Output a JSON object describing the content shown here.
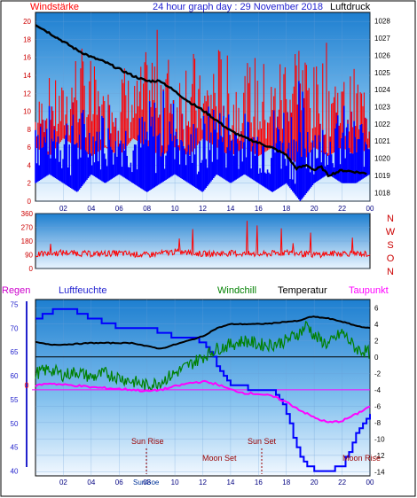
{
  "header": {
    "left": "Windstärke",
    "center": "24 hour graph day : 29 November 2018",
    "right": "Luftdruck"
  },
  "legend": {
    "regen": "Regen",
    "luftfeuchte": "Luftfeuchte",
    "windchill": "Windchill",
    "temperatur": "Temperatur",
    "taupunkt": "Taupunkt"
  },
  "compass": [
    "N",
    "W",
    "S",
    "O",
    "N"
  ],
  "annotations": {
    "sun_rise": "Sun Rise",
    "sun_set": "Sun Set",
    "moon_set": "Moon Set",
    "moon_rise": "Moon Rise",
    "sungoe": "SunGoe"
  },
  "colors": {
    "wind": "#ff0000",
    "gust": "#0000ff",
    "pressure": "#000000",
    "humidity": "#0000ff",
    "windchill": "#008000",
    "temperature": "#000000",
    "dewpoint": "#ff00ff",
    "rain": "#ff0000"
  },
  "chart_data": [
    {
      "type": "bar",
      "name": "wind-pressure",
      "x_ticks": [
        "02",
        "04",
        "06",
        "08",
        "10",
        "12",
        "14",
        "16",
        "18",
        "20",
        "22",
        "00"
      ],
      "y_left_ticks": [
        "0",
        "2",
        "4",
        "6",
        "8",
        "10",
        "12",
        "14",
        "16",
        "18",
        "20"
      ],
      "y_right_ticks": [
        "1018",
        "1019",
        "1020",
        "1021",
        "1022",
        "1023",
        "1024",
        "1025",
        "1026",
        "1027",
        "1028"
      ],
      "ylim_left": [
        0,
        21
      ],
      "ylim_right": [
        1017.5,
        1028.5
      ],
      "xlim": [
        0,
        24
      ],
      "pressure": [
        [
          0,
          1027.8
        ],
        [
          1,
          1027.3
        ],
        [
          2,
          1026.8
        ],
        [
          3,
          1026.3
        ],
        [
          4,
          1025.9
        ],
        [
          5,
          1025.6
        ],
        [
          6,
          1025.2
        ],
        [
          7,
          1024.8
        ],
        [
          8,
          1024.5
        ],
        [
          9,
          1024.5
        ],
        [
          10,
          1023.9
        ],
        [
          11,
          1023.3
        ],
        [
          12,
          1022.8
        ],
        [
          13,
          1022.2
        ],
        [
          14,
          1021.6
        ],
        [
          15,
          1021.2
        ],
        [
          16,
          1020.9
        ],
        [
          17,
          1020.6
        ],
        [
          18,
          1020.2
        ],
        [
          18.7,
          1019.4
        ],
        [
          19.5,
          1019.6
        ],
        [
          20,
          1019.3
        ],
        [
          20.5,
          1019.5
        ],
        [
          21,
          1019.0
        ],
        [
          22,
          1019.3
        ],
        [
          23,
          1019.2
        ],
        [
          23.8,
          1019.1
        ]
      ],
      "wind_max": [
        [
          0,
          11
        ],
        [
          1,
          14
        ],
        [
          2,
          13
        ],
        [
          3,
          18
        ],
        [
          4,
          16
        ],
        [
          5,
          12
        ],
        [
          6,
          17
        ],
        [
          7,
          13
        ],
        [
          8,
          17
        ],
        [
          9,
          20
        ],
        [
          10,
          14
        ],
        [
          11,
          19
        ],
        [
          12,
          13
        ],
        [
          13,
          18
        ],
        [
          14,
          16
        ],
        [
          15,
          15
        ],
        [
          16,
          17
        ],
        [
          17,
          14
        ],
        [
          18,
          19
        ],
        [
          19,
          20
        ],
        [
          20,
          15
        ],
        [
          21,
          18
        ],
        [
          22,
          14
        ],
        [
          23,
          15
        ],
        [
          24,
          13
        ]
      ],
      "wind_min": [
        [
          0,
          6
        ],
        [
          1,
          5
        ],
        [
          2,
          7
        ],
        [
          3,
          6
        ],
        [
          4,
          5
        ],
        [
          5,
          6
        ],
        [
          6,
          5
        ],
        [
          7,
          7
        ],
        [
          8,
          6
        ],
        [
          9,
          5
        ],
        [
          10,
          6
        ],
        [
          11,
          5
        ],
        [
          12,
          7
        ],
        [
          13,
          6
        ],
        [
          14,
          5
        ],
        [
          15,
          6
        ],
        [
          16,
          5
        ],
        [
          17,
          6
        ],
        [
          18,
          5
        ],
        [
          19,
          4
        ],
        [
          20,
          6
        ],
        [
          21,
          5
        ],
        [
          22,
          6
        ],
        [
          23,
          5
        ],
        [
          24,
          6
        ]
      ],
      "gust_max": [
        [
          0,
          13
        ],
        [
          1,
          11
        ],
        [
          2,
          10
        ],
        [
          3,
          12
        ],
        [
          4,
          9
        ],
        [
          5,
          13
        ],
        [
          6,
          10
        ],
        [
          7,
          9
        ],
        [
          8,
          11
        ],
        [
          9,
          13
        ],
        [
          10,
          12
        ],
        [
          11,
          9
        ],
        [
          12,
          10
        ],
        [
          13,
          12
        ],
        [
          14,
          11
        ],
        [
          15,
          10
        ],
        [
          16,
          9
        ],
        [
          17,
          11
        ],
        [
          18,
          12
        ],
        [
          19,
          14
        ],
        [
          20,
          10
        ],
        [
          21,
          9
        ],
        [
          22,
          11
        ],
        [
          23,
          10
        ],
        [
          24,
          9
        ]
      ],
      "gust_min": [
        [
          0,
          3
        ],
        [
          1,
          4
        ],
        [
          2,
          3
        ],
        [
          3,
          2
        ],
        [
          4,
          4
        ],
        [
          5,
          3
        ],
        [
          6,
          4
        ],
        [
          7,
          3
        ],
        [
          8,
          2
        ],
        [
          9,
          3
        ],
        [
          10,
          4
        ],
        [
          11,
          3
        ],
        [
          12,
          2
        ],
        [
          13,
          4
        ],
        [
          14,
          3
        ],
        [
          15,
          4
        ],
        [
          16,
          3
        ],
        [
          17,
          2
        ],
        [
          18,
          3
        ],
        [
          19,
          1
        ],
        [
          20,
          3
        ],
        [
          21,
          4
        ],
        [
          22,
          3
        ],
        [
          23,
          3
        ],
        [
          24,
          4
        ]
      ]
    },
    {
      "type": "line",
      "name": "wind-direction",
      "y_ticks": [
        "360",
        "270",
        "180",
        "90",
        "0"
      ],
      "ylim": [
        0,
        360
      ],
      "xlim": [
        0,
        24
      ],
      "direction": [
        [
          0,
          90
        ],
        [
          2,
          105
        ],
        [
          4,
          95
        ],
        [
          6,
          100
        ],
        [
          8,
          88
        ],
        [
          10,
          110
        ],
        [
          12,
          95
        ],
        [
          14,
          100
        ],
        [
          16,
          92
        ],
        [
          18,
          105
        ],
        [
          20,
          90
        ],
        [
          22,
          100
        ],
        [
          24,
          95
        ]
      ]
    },
    {
      "type": "line",
      "name": "temperature-humidity",
      "x_ticks": [
        "02",
        "04",
        "06",
        "08",
        "10",
        "12",
        "14",
        "16",
        "18",
        "20",
        "22",
        "00"
      ],
      "y_left_ticks": [
        "40",
        "45",
        "50",
        "55",
        "60",
        "65",
        "70",
        "75"
      ],
      "y_right_ticks": [
        "-14",
        "-12",
        "-10",
        "-8",
        "-6",
        "-4",
        "-2",
        "0",
        "2",
        "4",
        "6"
      ],
      "y_left_marker": "0",
      "ylim_left": [
        39,
        76
      ],
      "ylim_right": [
        -14.5,
        7
      ],
      "xlim": [
        0,
        24
      ],
      "humidity": [
        [
          0,
          72
        ],
        [
          1,
          73
        ],
        [
          1.5,
          74
        ],
        [
          2.5,
          74
        ],
        [
          3,
          73
        ],
        [
          4,
          72
        ],
        [
          5,
          71
        ],
        [
          6,
          70
        ],
        [
          7,
          70
        ],
        [
          8,
          70
        ],
        [
          9,
          69
        ],
        [
          10,
          68
        ],
        [
          11,
          68
        ],
        [
          12,
          67
        ],
        [
          12.5,
          65
        ],
        [
          13,
          62
        ],
        [
          13.5,
          60
        ],
        [
          14,
          58
        ],
        [
          15,
          57.5
        ],
        [
          16,
          57
        ],
        [
          17,
          56.5
        ],
        [
          17.5,
          55
        ],
        [
          18,
          52
        ],
        [
          18.5,
          47
        ],
        [
          19,
          43
        ],
        [
          19.5,
          41
        ],
        [
          20,
          40
        ],
        [
          21,
          40
        ],
        [
          22,
          41
        ],
        [
          22.5,
          44
        ],
        [
          23,
          48
        ],
        [
          23.5,
          50
        ],
        [
          24,
          52
        ]
      ],
      "temperature": [
        [
          0,
          1.8
        ],
        [
          1,
          1.5
        ],
        [
          2,
          1.5
        ],
        [
          3,
          1.6
        ],
        [
          4,
          1.7
        ],
        [
          5,
          1.7
        ],
        [
          6,
          1.7
        ],
        [
          7,
          1.7
        ],
        [
          8,
          1.3
        ],
        [
          9,
          1.0
        ],
        [
          10,
          1.5
        ],
        [
          11,
          2.0
        ],
        [
          12,
          2.5
        ],
        [
          13,
          3.5
        ],
        [
          14,
          4.0
        ],
        [
          15,
          4.0
        ],
        [
          16,
          4.0
        ],
        [
          17,
          4.1
        ],
        [
          18,
          4.3
        ],
        [
          19,
          4.4
        ],
        [
          19.5,
          4.8
        ],
        [
          20,
          4.9
        ],
        [
          21,
          4.7
        ],
        [
          22,
          4.3
        ],
        [
          23,
          3.8
        ],
        [
          24,
          3.5
        ]
      ],
      "windchill": [
        [
          0,
          -2
        ],
        [
          1,
          -1.5
        ],
        [
          2,
          -2.2
        ],
        [
          3,
          -1.8
        ],
        [
          4,
          -2.5
        ],
        [
          5,
          -2.0
        ],
        [
          6,
          -2.5
        ],
        [
          7,
          -3
        ],
        [
          8,
          -3.5
        ],
        [
          9,
          -3
        ],
        [
          10,
          -2
        ],
        [
          11,
          -1
        ],
        [
          12,
          0
        ],
        [
          13,
          1
        ],
        [
          14,
          1.5
        ],
        [
          15,
          2
        ],
        [
          16,
          1.5
        ],
        [
          17,
          1.5
        ],
        [
          18,
          2
        ],
        [
          19,
          3
        ],
        [
          19.5,
          4
        ],
        [
          20,
          2.5
        ],
        [
          21,
          1.5
        ],
        [
          22,
          3
        ],
        [
          23,
          1
        ],
        [
          24,
          0.5
        ]
      ],
      "dewpoint": [
        [
          0,
          -3.5
        ],
        [
          1,
          -3.2
        ],
        [
          2,
          -3.4
        ],
        [
          3,
          -3.5
        ],
        [
          4,
          -3.7
        ],
        [
          5,
          -3.8
        ],
        [
          6,
          -3.9
        ],
        [
          7,
          -4.0
        ],
        [
          8,
          -4.2
        ],
        [
          9,
          -4.0
        ],
        [
          10,
          -3.6
        ],
        [
          11,
          -3.2
        ],
        [
          12,
          -3.0
        ],
        [
          13,
          -3.3
        ],
        [
          14,
          -4.0
        ],
        [
          15,
          -4.4
        ],
        [
          16,
          -4.5
        ],
        [
          17,
          -4.8
        ],
        [
          18,
          -5.5
        ],
        [
          19,
          -6.5
        ],
        [
          20,
          -7.4
        ],
        [
          21,
          -8.0
        ],
        [
          22,
          -7.8
        ],
        [
          23,
          -7.0
        ],
        [
          24,
          -6.0
        ]
      ]
    }
  ]
}
